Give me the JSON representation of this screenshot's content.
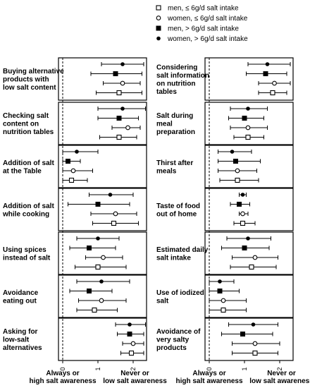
{
  "legend": {
    "position": "top-center",
    "entries": [
      {
        "label": "men, ≤ 6g/d salt intake",
        "marker": "open-square"
      },
      {
        "label": "women, ≤ 6g/d salt intake",
        "marker": "open-circle"
      },
      {
        "label": "men, > 6g/d salt intake",
        "marker": "filled-square"
      },
      {
        "label": "women, > 6g/d salt intake",
        "marker": "filled-circle"
      }
    ]
  },
  "chart_data": [
    {
      "type": "scatter",
      "xlim": [
        0,
        2.5
      ],
      "xticks": [
        "0",
        "1",
        "2"
      ],
      "x_end_labels": {
        "left": [
          "Always or",
          "high salt awareness"
        ],
        "right": [
          "Never or",
          "low salt awareness"
        ]
      },
      "panels": [
        {
          "label": [
            "Buying alternative",
            "products with",
            "low salt content"
          ],
          "points": [
            {
              "v": 1.6,
              "lo": 0.95,
              "hi": 2.25
            },
            {
              "v": 1.7,
              "lo": 1.15,
              "hi": 2.2
            },
            {
              "v": 1.5,
              "lo": 0.8,
              "hi": 2.25
            },
            {
              "v": 1.7,
              "lo": 1.1,
              "hi": 2.3
            }
          ]
        },
        {
          "label": [
            "Checking salt",
            "content on",
            "nutrition tables"
          ],
          "points": [
            {
              "v": 1.6,
              "lo": 1.05,
              "hi": 2.1
            },
            {
              "v": 1.85,
              "lo": 1.4,
              "hi": 2.2
            },
            {
              "v": 1.6,
              "lo": 1.0,
              "hi": 2.15
            },
            {
              "v": 1.7,
              "lo": 1.0,
              "hi": 2.35
            }
          ]
        },
        {
          "label": [
            "Addition of salt",
            "at the Table"
          ],
          "points": [
            {
              "v": 0.25,
              "lo": 0.0,
              "hi": 0.7
            },
            {
              "v": 0.3,
              "lo": 0.0,
              "hi": 0.85
            },
            {
              "v": 0.15,
              "lo": 0.0,
              "hi": 0.5
            },
            {
              "v": 0.4,
              "lo": 0.0,
              "hi": 1.0
            }
          ]
        },
        {
          "label": [
            "Addition of salt",
            "while cooking"
          ],
          "points": [
            {
              "v": 1.45,
              "lo": 0.85,
              "hi": 2.15
            },
            {
              "v": 1.5,
              "lo": 0.8,
              "hi": 2.1
            },
            {
              "v": 1.0,
              "lo": 0.15,
              "hi": 1.9
            },
            {
              "v": 1.35,
              "lo": 0.75,
              "hi": 2.0
            }
          ]
        },
        {
          "label": [
            "Using spices",
            "instead of salt"
          ],
          "points": [
            {
              "v": 1.0,
              "lo": 0.35,
              "hi": 1.8
            },
            {
              "v": 1.15,
              "lo": 0.65,
              "hi": 1.7
            },
            {
              "v": 0.75,
              "lo": 0.2,
              "hi": 1.5
            },
            {
              "v": 1.0,
              "lo": 0.4,
              "hi": 1.6
            }
          ]
        },
        {
          "label": [
            "Avoidance",
            "eating out"
          ],
          "points": [
            {
              "v": 0.9,
              "lo": 0.4,
              "hi": 1.55
            },
            {
              "v": 1.1,
              "lo": 0.45,
              "hi": 1.8
            },
            {
              "v": 0.75,
              "lo": 0.2,
              "hi": 1.4
            },
            {
              "v": 1.1,
              "lo": 0.4,
              "hi": 1.9
            }
          ]
        },
        {
          "label": [
            "Asking for",
            "low-salt",
            "alternatives"
          ],
          "points": [
            {
              "v": 1.95,
              "lo": 1.65,
              "hi": 2.3
            },
            {
              "v": 2.0,
              "lo": 1.7,
              "hi": 2.3
            },
            {
              "v": 1.9,
              "lo": 1.55,
              "hi": 2.3
            },
            {
              "v": 1.9,
              "lo": 1.5,
              "hi": 2.35
            }
          ]
        }
      ]
    },
    {
      "type": "scatter",
      "xlim": [
        0,
        2.5
      ],
      "xticks": [
        "0",
        "1",
        "2"
      ],
      "x_end_labels": {
        "left": [
          "Always or",
          "high salt awareness"
        ],
        "right": [
          "Never or",
          "low salt awareness"
        ]
      },
      "panels": [
        {
          "label": [
            "Considering",
            "salt information",
            "on nutrition",
            "tables"
          ],
          "points": [
            {
              "v": 1.8,
              "lo": 1.4,
              "hi": 2.2
            },
            {
              "v": 1.85,
              "lo": 1.4,
              "hi": 2.3
            },
            {
              "v": 1.6,
              "lo": 1.05,
              "hi": 2.2
            },
            {
              "v": 1.65,
              "lo": 1.1,
              "hi": 2.3
            }
          ]
        },
        {
          "label": [
            "Salt during",
            "meal",
            "preparation"
          ],
          "points": [
            {
              "v": 1.1,
              "lo": 0.7,
              "hi": 1.55
            },
            {
              "v": 1.1,
              "lo": 0.6,
              "hi": 1.65
            },
            {
              "v": 1.0,
              "lo": 0.55,
              "hi": 1.55
            },
            {
              "v": 1.1,
              "lo": 0.6,
              "hi": 1.65
            }
          ]
        },
        {
          "label": [
            "Thirst after",
            "meals"
          ],
          "points": [
            {
              "v": 0.8,
              "lo": 0.3,
              "hi": 1.4
            },
            {
              "v": 0.8,
              "lo": 0.25,
              "hi": 1.35
            },
            {
              "v": 0.75,
              "lo": 0.25,
              "hi": 1.45
            },
            {
              "v": 0.65,
              "lo": 0.25,
              "hi": 1.2
            }
          ]
        },
        {
          "label": [
            "Taste of food",
            "out of home"
          ],
          "points": [
            {
              "v": 0.95,
              "lo": 0.7,
              "hi": 1.3
            },
            {
              "v": 0.95,
              "lo": 0.85,
              "hi": 1.1
            },
            {
              "v": 0.85,
              "lo": 0.6,
              "hi": 1.15
            },
            {
              "v": 0.95,
              "lo": 0.85,
              "hi": 1.05
            }
          ]
        },
        {
          "label": [
            "Estimated daily",
            "salt intake"
          ],
          "points": [
            {
              "v": 1.2,
              "lo": 0.6,
              "hi": 1.9
            },
            {
              "v": 1.3,
              "lo": 0.65,
              "hi": 1.95
            },
            {
              "v": 1.0,
              "lo": 0.35,
              "hi": 1.7
            },
            {
              "v": 1.1,
              "lo": 0.5,
              "hi": 1.75
            }
          ]
        },
        {
          "label": [
            "Use of iodized",
            "salt"
          ],
          "points": [
            {
              "v": 0.4,
              "lo": 0.0,
              "hi": 1.05
            },
            {
              "v": 0.4,
              "lo": 0.0,
              "hi": 1.05
            },
            {
              "v": 0.3,
              "lo": 0.0,
              "hi": 0.85
            },
            {
              "v": 0.3,
              "lo": 0.0,
              "hi": 0.7
            }
          ]
        },
        {
          "label": [
            "Avoidance of",
            "very salty",
            "products"
          ],
          "points": [
            {
              "v": 1.3,
              "lo": 0.65,
              "hi": 1.95
            },
            {
              "v": 1.3,
              "lo": 0.65,
              "hi": 2.0
            },
            {
              "v": 0.95,
              "lo": 0.35,
              "hi": 1.8
            },
            {
              "v": 1.25,
              "lo": 0.55,
              "hi": 1.95
            }
          ]
        }
      ]
    }
  ]
}
